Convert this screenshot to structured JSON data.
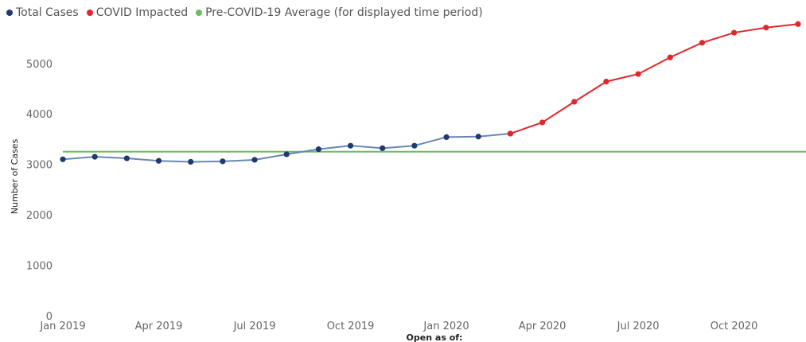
{
  "chart_data": {
    "type": "line",
    "legend": [
      {
        "name": "Total Cases",
        "color": "#1f3a6e"
      },
      {
        "name": "COVID Impacted",
        "color": "#e3262b"
      },
      {
        "name": "Pre-COVID-19 Average (for displayed time period)",
        "color": "#6abf5c"
      }
    ],
    "x": [
      "2019-01",
      "2019-02",
      "2019-03",
      "2019-04",
      "2019-05",
      "2019-06",
      "2019-07",
      "2019-08",
      "2019-09",
      "2019-10",
      "2019-11",
      "2019-12",
      "2020-01",
      "2020-02",
      "2020-03",
      "2020-04",
      "2020-05",
      "2020-06",
      "2020-07",
      "2020-08",
      "2020-09",
      "2020-10",
      "2020-11",
      "2020-12"
    ],
    "series": [
      {
        "name": "Total Cases",
        "color": "#1f3a6e",
        "line_color": "#6b86b6",
        "x": [
          "2019-01",
          "2019-02",
          "2019-03",
          "2019-04",
          "2019-05",
          "2019-06",
          "2019-07",
          "2019-08",
          "2019-09",
          "2019-10",
          "2019-11",
          "2019-12",
          "2020-01",
          "2020-02",
          "2020-03"
        ],
        "values": [
          3100,
          3150,
          3120,
          3070,
          3050,
          3060,
          3090,
          3200,
          3300,
          3370,
          3320,
          3370,
          3540,
          3550,
          3610
        ]
      },
      {
        "name": "COVID Impacted",
        "color": "#e3262b",
        "line_color": "#e3262b",
        "x": [
          "2020-03",
          "2020-04",
          "2020-05",
          "2020-06",
          "2020-07",
          "2020-08",
          "2020-09",
          "2020-10",
          "2020-11",
          "2020-12"
        ],
        "values": [
          3610,
          3830,
          4240,
          4640,
          4790,
          5120,
          5410,
          5610,
          5710,
          5780
        ]
      },
      {
        "name": "Pre-COVID-19 Average (for displayed time period)",
        "color": "#6abf5c",
        "type": "hline",
        "value": 3250
      }
    ],
    "x_ticks": [
      "Jan 2019",
      "Apr 2019",
      "Jul 2019",
      "Oct 2019",
      "Jan 2020",
      "Apr 2020",
      "Jul 2020",
      "Oct 2020"
    ],
    "y_ticks": [
      0,
      1000,
      2000,
      3000,
      4000,
      5000
    ],
    "ylim": [
      0,
      5800
    ],
    "xlabel": "Open as of:",
    "ylabel": "Number of Cases",
    "grid": false,
    "legend_position": "top-left"
  }
}
